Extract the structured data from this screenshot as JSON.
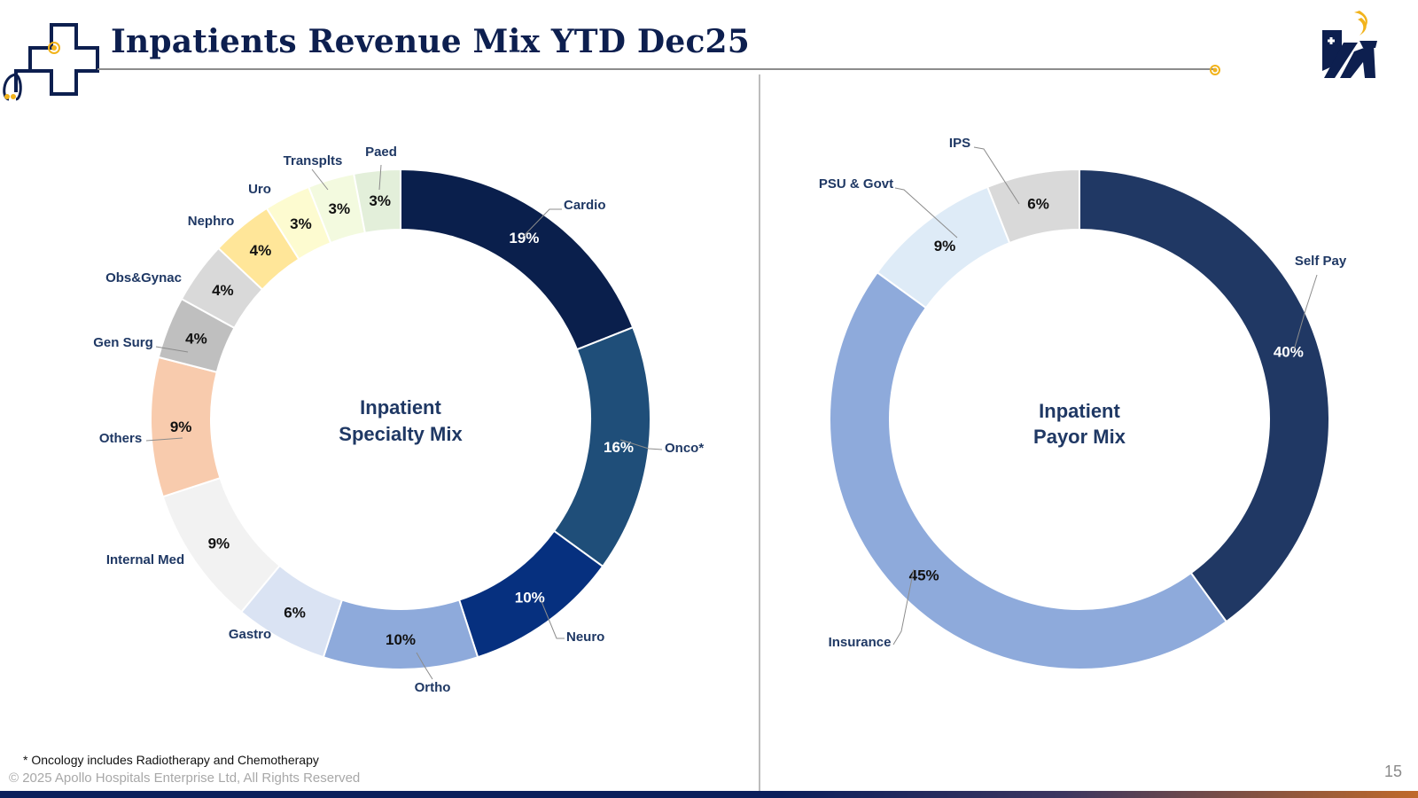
{
  "slide": {
    "title": "Inpatients Revenue Mix YTD Dec25",
    "footnote": "* Oncology includes Radiotherapy and Chemotherapy",
    "copyright": "© 2025 Apollo Hospitals Enterprise Ltd, All Rights Reserved",
    "page_number": "15"
  },
  "logos": {
    "left_icon": "medical-cross-stethoscope-icon",
    "right_icon": "apollo-hospitals-logo"
  },
  "chart_data": [
    {
      "type": "pie",
      "subtype": "donut",
      "center_label": [
        "Inpatient",
        "Specialty Mix"
      ],
      "label_color": "#1f3864",
      "series": [
        {
          "name": "Cardio",
          "value": 19,
          "label": "19%",
          "color": "#0a1f4c",
          "text_color": "#ffffff"
        },
        {
          "name": "Onco*",
          "value": 16,
          "label": "16%",
          "color": "#1f4e79",
          "text_color": "#ffffff"
        },
        {
          "name": "Neuro",
          "value": 10,
          "label": "10%",
          "color": "#06307f",
          "text_color": "#ffffff"
        },
        {
          "name": "Ortho",
          "value": 10,
          "label": "10%",
          "color": "#8eaadb",
          "text_color": "#111111"
        },
        {
          "name": "Gastro",
          "value": 6,
          "label": "6%",
          "color": "#dae3f3",
          "text_color": "#111111"
        },
        {
          "name": "Internal Med",
          "value": 9,
          "label": "9%",
          "color": "#f2f2f2",
          "text_color": "#111111"
        },
        {
          "name": "Others",
          "value": 9,
          "label": "9%",
          "color": "#f8cbad",
          "text_color": "#111111"
        },
        {
          "name": "Gen Surg",
          "value": 4,
          "label": "4%",
          "color": "#bfbfbf",
          "text_color": "#111111"
        },
        {
          "name": "Obs&Gynac",
          "value": 4,
          "label": "4%",
          "color": "#d9d9d9",
          "text_color": "#111111"
        },
        {
          "name": "Nephro",
          "value": 4,
          "label": "4%",
          "color": "#ffe699",
          "text_color": "#111111"
        },
        {
          "name": "Uro",
          "value": 3,
          "label": "3%",
          "color": "#fdfbd0",
          "text_color": "#111111"
        },
        {
          "name": "Transplts",
          "value": 3,
          "label": "3%",
          "color": "#f3fadf",
          "text_color": "#111111"
        },
        {
          "name": "Paed",
          "value": 3,
          "label": "3%",
          "color": "#e3efda",
          "text_color": "#111111"
        }
      ]
    },
    {
      "type": "pie",
      "subtype": "donut",
      "center_label": [
        "Inpatient",
        "Payor Mix"
      ],
      "label_color": "#1f3864",
      "series": [
        {
          "name": "Self Pay",
          "value": 40,
          "label": "40%",
          "color": "#203864",
          "text_color": "#ffffff"
        },
        {
          "name": "Insurance",
          "value": 45,
          "label": "45%",
          "color": "#8eaadb",
          "text_color": "#111111"
        },
        {
          "name": "PSU & Govt",
          "value": 9,
          "label": "9%",
          "color": "#deebf7",
          "text_color": "#111111"
        },
        {
          "name": "IPS",
          "value": 6,
          "label": "6%",
          "color": "#d9d9d9",
          "text_color": "#111111"
        }
      ]
    }
  ]
}
